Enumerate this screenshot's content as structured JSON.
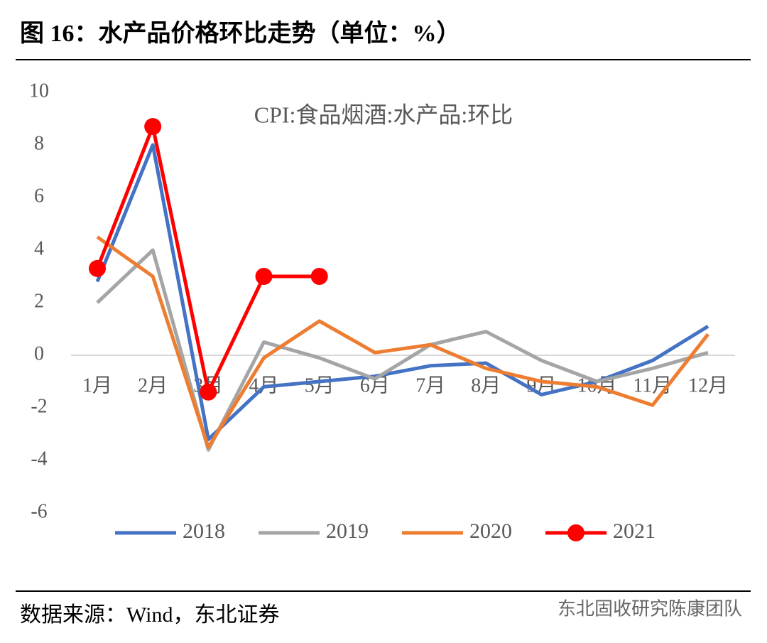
{
  "header": {
    "title": "图 16：水产品价格环比走势（单位：%）"
  },
  "chart_data": {
    "type": "line",
    "title": "CPI:食品烟酒:水产品:环比",
    "categories": [
      "1月",
      "2月",
      "3月",
      "4月",
      "5月",
      "6月",
      "7月",
      "8月",
      "9月",
      "10月",
      "11月",
      "12月"
    ],
    "series": [
      {
        "name": "2018",
        "color": "#4472c4",
        "values": [
          2.8,
          8.0,
          -3.2,
          -1.2,
          -1.0,
          -0.8,
          -0.4,
          -0.3,
          -1.5,
          -1.0,
          -0.2,
          1.1
        ]
      },
      {
        "name": "2019",
        "color": "#a5a5a5",
        "values": [
          2.0,
          4.0,
          -3.6,
          0.5,
          -0.1,
          -0.9,
          0.4,
          0.9,
          -0.2,
          -1.0,
          -0.5,
          0.1
        ]
      },
      {
        "name": "2020",
        "color": "#ed7d31",
        "values": [
          4.5,
          3.0,
          -3.5,
          -0.1,
          1.3,
          0.1,
          0.4,
          -0.5,
          -1.0,
          -1.2,
          -1.9,
          0.8
        ]
      },
      {
        "name": "2021",
        "color": "#ff0000",
        "markers": true,
        "values": [
          3.3,
          8.7,
          -1.4,
          3.0,
          3.0,
          null,
          null,
          null,
          null,
          null,
          null,
          null
        ]
      }
    ],
    "ylim": [
      -6,
      10
    ],
    "yticks": [
      -6,
      -4,
      -2,
      0,
      2,
      4,
      6,
      8,
      10
    ],
    "legend": "bottom"
  },
  "footer": {
    "source": "数据来源：Wind，东北证券",
    "watermark": "东北固收研究陈康团队"
  }
}
